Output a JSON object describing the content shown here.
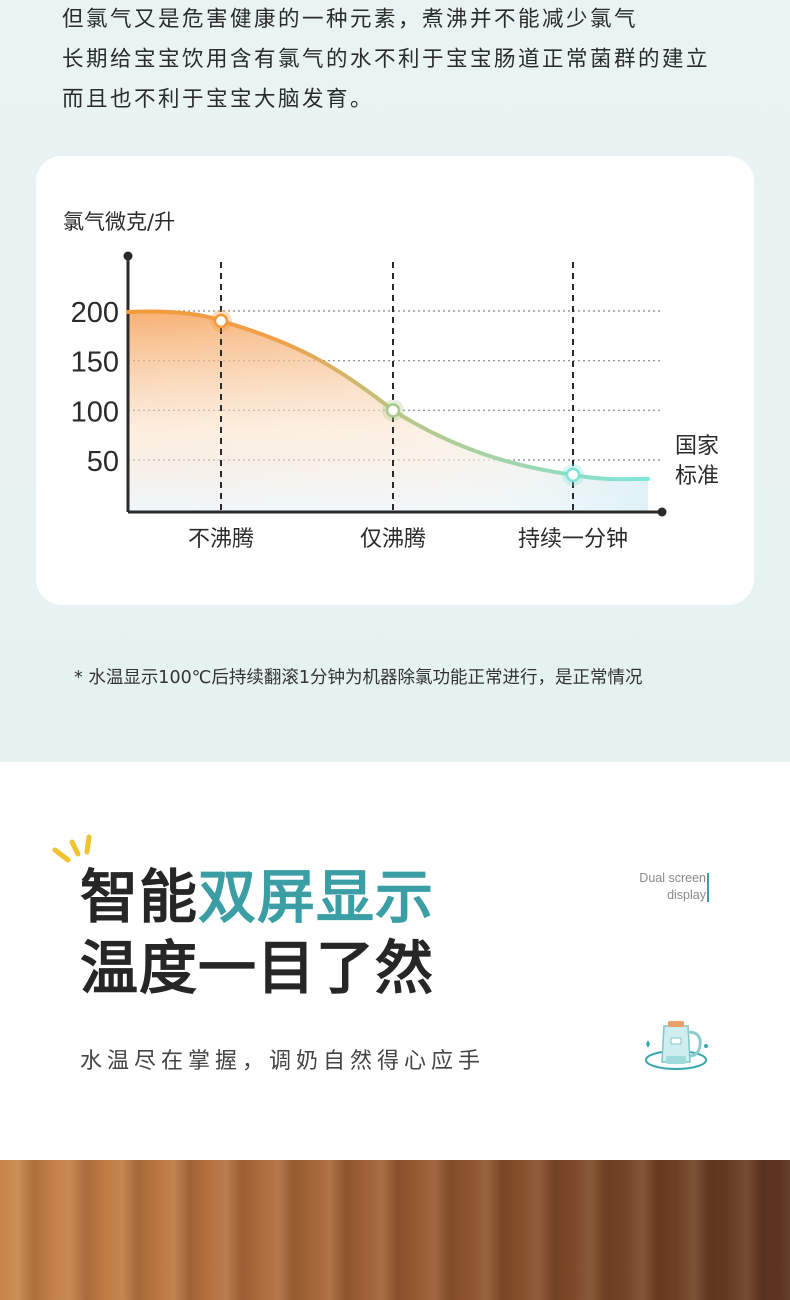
{
  "intro": {
    "lines": [
      "但氯气又是危害健康的一种元素，煮沸并不能减少氯气",
      "长期给宝宝饮用含有氯气的水不利于宝宝肠道正常菌群的建立",
      "而且也不利于宝宝大脑发育。"
    ]
  },
  "chart_data": {
    "type": "line",
    "ylabel": "氯气微克/升",
    "yticks": [
      "200",
      "150",
      "100",
      "50"
    ],
    "ylim": [
      0,
      250
    ],
    "categories": [
      "不沸腾",
      "仅沸腾",
      "持续一分钟"
    ],
    "values": [
      190,
      100,
      35
    ],
    "end_label": [
      "国家",
      "标准"
    ],
    "grid": "dotted horizontal",
    "colors": {
      "start": "#f39a3a",
      "mid": "#aac98c",
      "end": "#7fe3dc"
    }
  },
  "footnote": "* 水温显示100℃后持续翻滚1分钟为机器除氯功能正常进行，是正常情况",
  "feature": {
    "tag_lines": [
      "Dual screen",
      "display"
    ],
    "headline1_dark": "智能",
    "headline1_accent": "双屏显示",
    "headline2": "温度一目了然",
    "subline": "水温尽在掌握，调奶自然得心应手",
    "icons": [
      "sparkle-icon",
      "kettle-icon"
    ]
  }
}
